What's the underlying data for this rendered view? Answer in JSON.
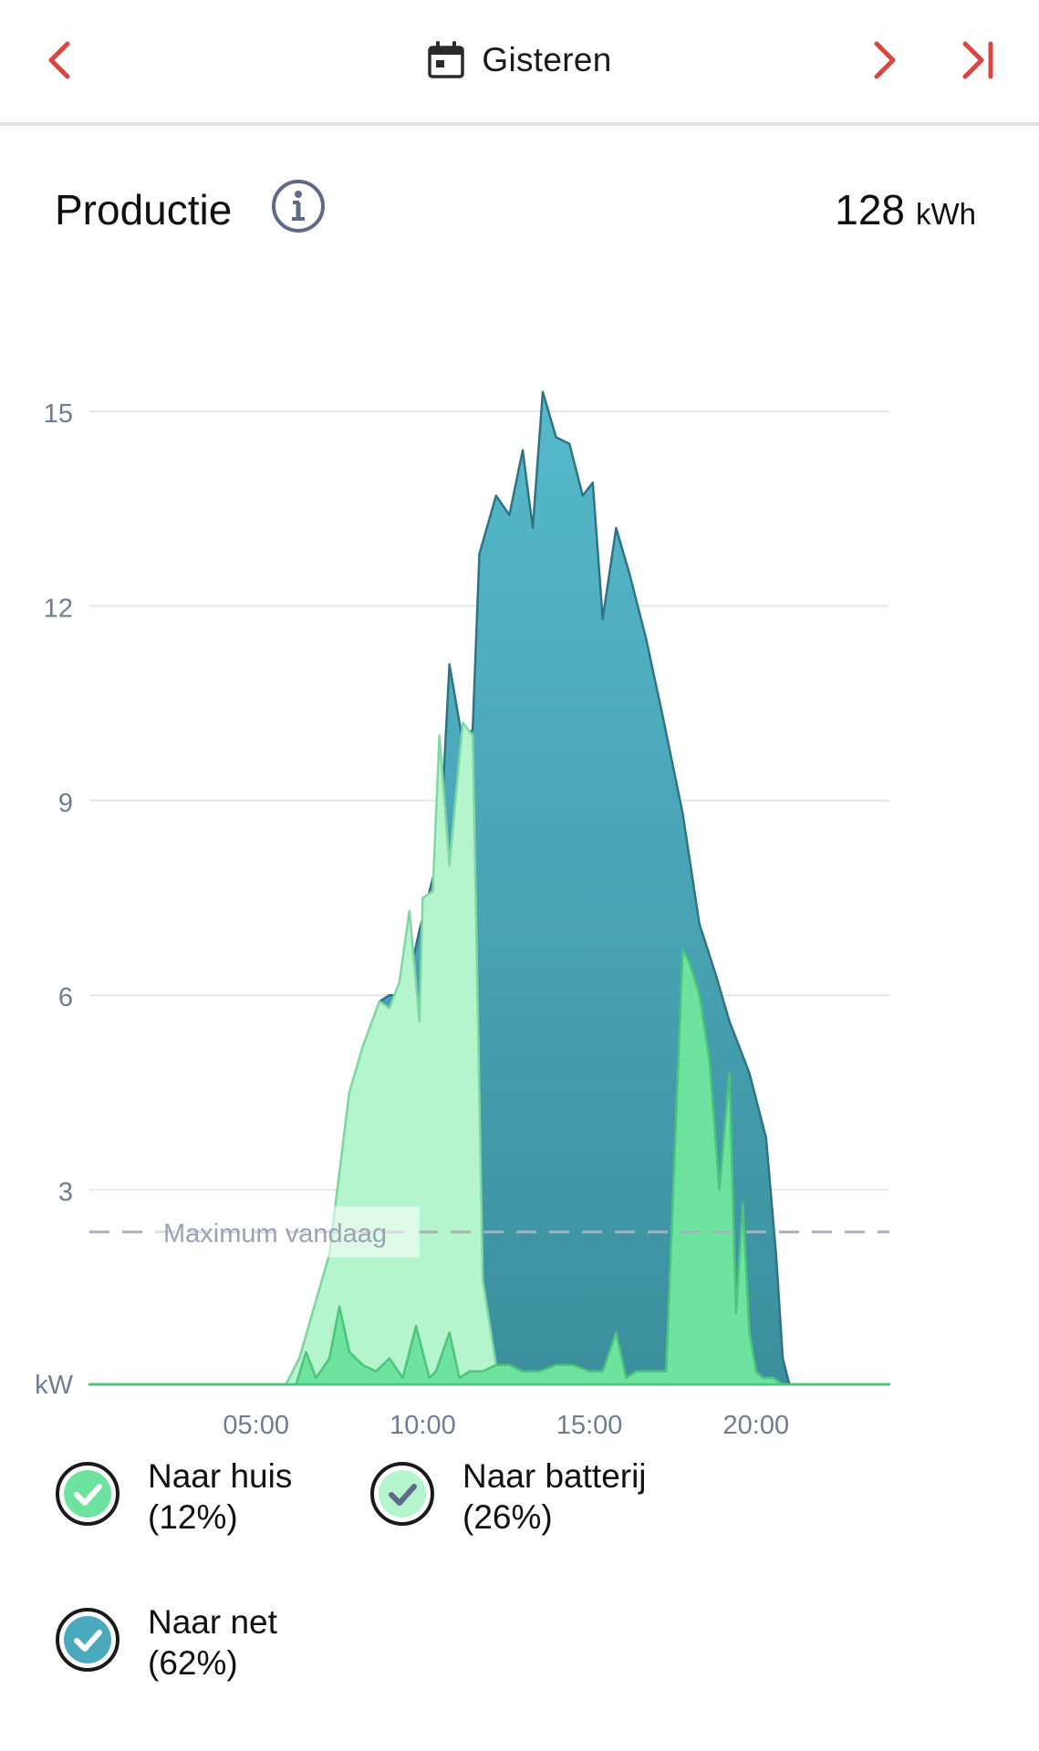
{
  "topbar": {
    "title": "Gisteren",
    "prev_icon": "chevron-left-icon",
    "next_icon": "chevron-right-icon",
    "last_icon": "skip-to-end-icon",
    "date_icon": "calendar-icon",
    "accent_color": "#d9463f"
  },
  "header": {
    "title": "Productie",
    "info_icon": "info-icon",
    "total_value": "128",
    "total_unit": "kWh"
  },
  "chart_data": {
    "type": "area",
    "ylabel": "kW",
    "ylim": [
      0,
      15
    ],
    "yticks": [
      "15",
      "12",
      "9",
      "6",
      "3"
    ],
    "xticks": [
      "05:00",
      "10:00",
      "15:00",
      "20:00"
    ],
    "xlim_hours": [
      0,
      24
    ],
    "reference_line": {
      "label": "Maximum vandaag",
      "value": 2.35
    },
    "grid": true,
    "series": [
      {
        "name": "Naar net",
        "color": "#4aa9bc",
        "x": [
          0,
          5.9,
          6.3,
          7.2,
          7.8,
          8.2,
          8.7,
          9.0,
          9.3,
          9.6,
          9.9,
          10.3,
          10.5,
          10.8,
          11.2,
          11.5,
          11.7,
          12.2,
          12.6,
          13.0,
          13.3,
          13.6,
          14.0,
          14.4,
          14.8,
          15.1,
          15.4,
          15.8,
          16.2,
          16.7,
          17.2,
          17.8,
          18.3,
          18.8,
          19.2,
          19.8,
          20.3,
          20.6,
          20.8,
          21.0,
          22.0,
          24.0
        ],
        "y": [
          0,
          0,
          0.4,
          2.0,
          4.5,
          5.2,
          5.9,
          6.0,
          6.0,
          6.3,
          7.0,
          7.8,
          8.1,
          11.1,
          9.9,
          10.1,
          12.8,
          13.7,
          13.4,
          14.4,
          13.2,
          15.3,
          14.6,
          14.5,
          13.7,
          13.9,
          11.8,
          13.2,
          12.5,
          11.5,
          10.3,
          8.8,
          7.1,
          6.3,
          5.6,
          4.8,
          3.8,
          2.0,
          0.4,
          0,
          0,
          0
        ]
      },
      {
        "name": "Naar batterij",
        "color": "#b5f5cd",
        "x": [
          0,
          5.9,
          6.3,
          7.2,
          7.8,
          8.2,
          8.7,
          9.0,
          9.3,
          9.6,
          9.9,
          10.0,
          10.3,
          10.5,
          10.8,
          11.2,
          11.5,
          11.8,
          12.2,
          12.3,
          12.6,
          24.0
        ],
        "y": [
          0,
          0,
          0.4,
          2.0,
          4.5,
          5.2,
          5.9,
          5.8,
          6.2,
          7.3,
          5.6,
          7.5,
          7.6,
          10.0,
          8.0,
          10.2,
          10.0,
          1.6,
          0.3,
          0.2,
          0,
          0
        ]
      },
      {
        "name": "Naar huis",
        "color": "#6ee3a0",
        "x": [
          0,
          6.2,
          6.5,
          6.8,
          7.2,
          7.5,
          7.8,
          8.2,
          8.6,
          9.0,
          9.4,
          9.8,
          10.2,
          10.4,
          10.8,
          11.1,
          11.4,
          11.8,
          12.2,
          12.6,
          13.0,
          13.5,
          14.0,
          14.5,
          15.0,
          15.4,
          15.8,
          16.1,
          16.4,
          16.8,
          17.3,
          17.8,
          18.0,
          18.3,
          18.6,
          18.9,
          19.2,
          19.4,
          19.6,
          19.8,
          20.0,
          20.2,
          20.5,
          20.8,
          21.2,
          22.0,
          24.0
        ],
        "y": [
          0,
          0,
          0.5,
          0.1,
          0.4,
          1.2,
          0.5,
          0.3,
          0.2,
          0.4,
          0.1,
          0.9,
          0.1,
          0.2,
          0.8,
          0.1,
          0.2,
          0.2,
          0.3,
          0.3,
          0.2,
          0.2,
          0.3,
          0.3,
          0.2,
          0.2,
          0.8,
          0.1,
          0.2,
          0.2,
          0.2,
          6.7,
          6.5,
          6.0,
          5.0,
          3.0,
          4.8,
          1.1,
          2.8,
          0.8,
          0.2,
          0.1,
          0.1,
          0,
          0,
          0,
          0
        ]
      }
    ]
  },
  "legend": [
    {
      "label": "Naar huis",
      "percent": "(12%)",
      "color": "#6ee3a0",
      "check_color": "#ffffff"
    },
    {
      "label": "Naar batterij",
      "percent": "(26%)",
      "color": "#b5f5cd",
      "check_color": "#5f6b86"
    },
    {
      "label": "Naar net",
      "percent": "(62%)",
      "color": "#4aa9bc",
      "check_color": "#ffffff"
    }
  ]
}
